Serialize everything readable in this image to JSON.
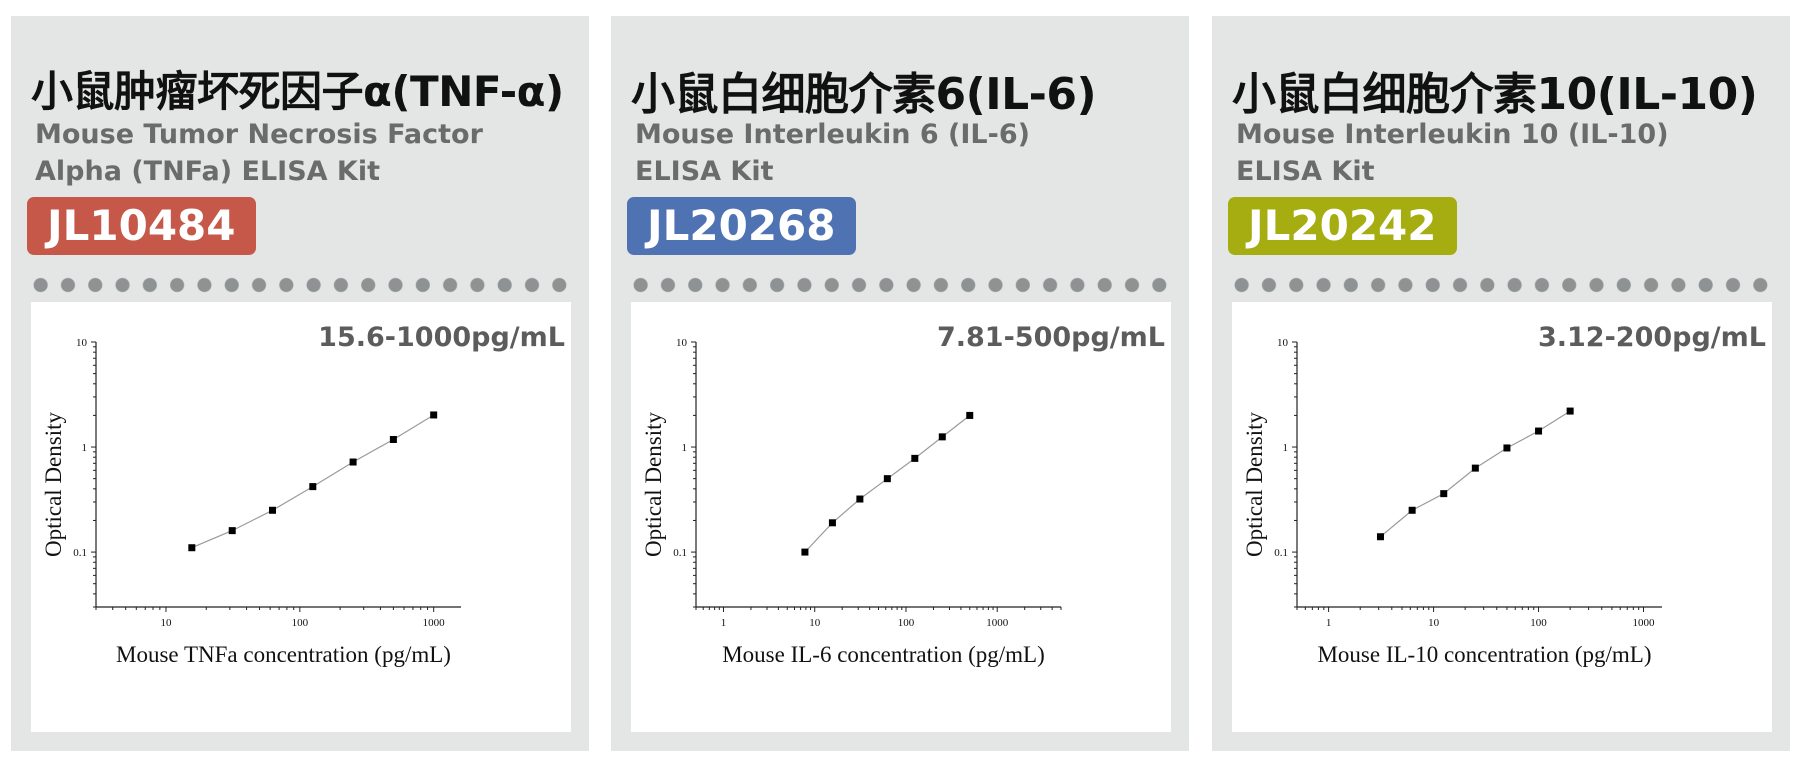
{
  "panels": [
    {
      "title": "小鼠肿瘤坏死因子α(TNF-α)",
      "subtitle_lines": [
        "Mouse Tumor Necrosis Factor",
        "Alpha (TNFa) ELISA Kit"
      ],
      "badge": "JL10484",
      "badge_color": "#c55848",
      "range": "15.6-1000pg/mL"
    },
    {
      "title": "小鼠白细胞介素6(IL-6)",
      "subtitle_lines": [
        "Mouse Interleukin 6 (IL-6)",
        "ELISA Kit"
      ],
      "badge": "JL20268",
      "badge_color": "#4f72b2",
      "range": "7.81-500pg/mL"
    },
    {
      "title": "小鼠白细胞介素10(IL-10)",
      "subtitle_lines": [
        "Mouse Interleukin 10 (IL-10)",
        "ELISA Kit"
      ],
      "badge": "JL20242",
      "badge_color": "#a5ad10",
      "range": "3.12-200pg/mL"
    }
  ],
  "chart_data": [
    {
      "type": "scatter",
      "xlabel": "Mouse TNFa concentration (pg/mL)",
      "ylabel": "Optical Density",
      "x_scale": "log",
      "y_scale": "log",
      "xlim": [
        3,
        1600
      ],
      "ylim": [
        0.03,
        10
      ],
      "xticks": [
        10,
        100,
        1000
      ],
      "xtick_labels": [
        "10",
        "100",
        "1000"
      ],
      "yticks": [
        0.1,
        1,
        10
      ],
      "ytick_labels": [
        "0.1",
        "1",
        "10"
      ],
      "x": [
        15.6,
        31.25,
        62.5,
        125,
        250,
        500,
        1000
      ],
      "y": [
        0.11,
        0.16,
        0.25,
        0.42,
        0.72,
        1.18,
        2.02
      ],
      "fit_line": true,
      "grid": false
    },
    {
      "type": "scatter",
      "xlabel": "Mouse IL-6 concentration (pg/mL)",
      "ylabel": "Optical Density",
      "x_scale": "log",
      "y_scale": "log",
      "xlim": [
        0.5,
        5000
      ],
      "ylim": [
        0.03,
        10
      ],
      "xticks": [
        1,
        10,
        100,
        1000
      ],
      "xtick_labels": [
        "1",
        "10",
        "100",
        "1000"
      ],
      "yticks": [
        0.1,
        1,
        10
      ],
      "ytick_labels": [
        "0.1",
        "1",
        "10"
      ],
      "x": [
        7.81,
        15.63,
        31.25,
        62.5,
        125,
        250,
        500
      ],
      "y": [
        0.1,
        0.19,
        0.32,
        0.5,
        0.78,
        1.25,
        2.0
      ],
      "fit_line": true,
      "grid": false
    },
    {
      "type": "scatter",
      "xlabel": "Mouse IL-10 concentration (pg/mL)",
      "ylabel": "Optical Density",
      "x_scale": "log",
      "y_scale": "log",
      "xlim": [
        0.5,
        1500
      ],
      "ylim": [
        0.03,
        10
      ],
      "xticks": [
        1,
        10,
        100,
        1000
      ],
      "xtick_labels": [
        "1",
        "10",
        "100",
        "1000"
      ],
      "yticks": [
        0.1,
        1,
        10
      ],
      "ytick_labels": [
        "0.1",
        "1",
        "10"
      ],
      "x": [
        3.12,
        6.25,
        12.5,
        25,
        50,
        100,
        200
      ],
      "y": [
        0.14,
        0.25,
        0.36,
        0.63,
        0.98,
        1.42,
        2.2
      ],
      "fit_line": true,
      "grid": false
    }
  ]
}
